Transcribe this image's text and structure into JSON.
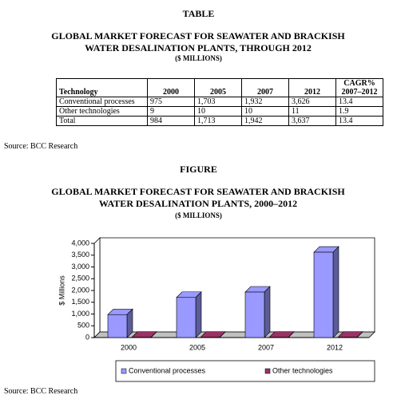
{
  "table_heading": "TABLE",
  "table_title": "GLOBAL MARKET FORECAST FOR SEAWATER AND BRACKISH WATER DESALINATION PLANTS, THROUGH 2012",
  "table_subtitle": "($ MILLIONS)",
  "table": {
    "header": [
      "Technology",
      "2000",
      "2005",
      "2007",
      "2012",
      "CAGR% 2007–2012"
    ],
    "rows": [
      [
        "Conventional processes",
        "975",
        "1,703",
        "1,932",
        "3,626",
        "13.4"
      ],
      [
        "Other technologies",
        "9",
        "10",
        "10",
        "11",
        "1.9"
      ],
      [
        "Total",
        "984",
        "1,713",
        "1,942",
        "3,637",
        "13.4"
      ]
    ]
  },
  "table_source": "Source: BCC Research",
  "figure_heading": "FIGURE",
  "chart_data": {
    "type": "bar3d",
    "title": "GLOBAL MARKET FORECAST FOR SEAWATER AND BRACKISH WATER DESALINATION PLANTS, 2000–2012",
    "subtitle": "($ MILLIONS)",
    "ylabel": "$ Millions",
    "categories": [
      "2000",
      "2005",
      "2007",
      "2012"
    ],
    "series": [
      {
        "name": "Conventional processes",
        "color": "#9999ff",
        "values": [
          975,
          1703,
          1932,
          3626
        ]
      },
      {
        "name": "Other technologies",
        "color": "#993366",
        "values": [
          9,
          10,
          10,
          11
        ]
      }
    ],
    "ylim": [
      0,
      4000
    ],
    "yticks": [
      0,
      500,
      {
        "value": 1000,
        "label": "1,000"
      },
      {
        "value": 1500,
        "label": "1,500"
      },
      {
        "value": 2000,
        "label": "2,000"
      },
      {
        "value": 2500,
        "label": "2,500"
      },
      {
        "value": 3000,
        "label": "3,000"
      },
      {
        "value": 3500,
        "label": "3,500"
      },
      {
        "value": 4000,
        "label": "4,000"
      }
    ],
    "legend": "bottom"
  },
  "figure_source": "Source: BCC Research"
}
